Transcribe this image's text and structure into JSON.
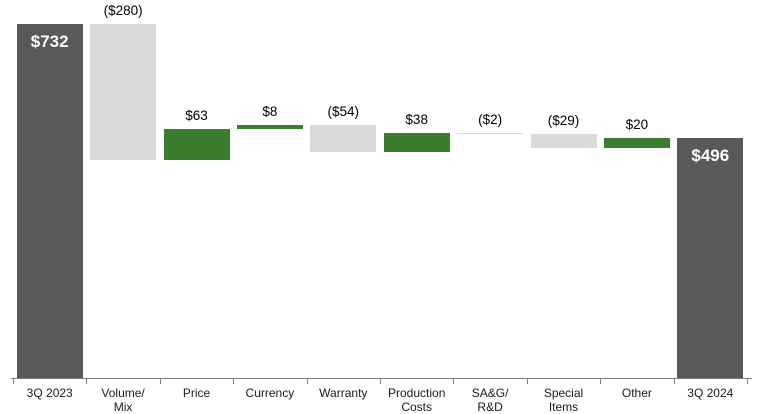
{
  "chart_data": {
    "type": "waterfall",
    "title": "",
    "xlabel": "",
    "ylabel": "",
    "ylim": [
      0,
      780
    ],
    "grid": false,
    "legend": "none",
    "start_value": 732,
    "end_value": 496,
    "categories": [
      "3Q 2023",
      "Volume/ Mix",
      "Price",
      "Currency",
      "Warranty",
      "Production Costs",
      "SA&G/ R&D",
      "Special Items",
      "Other",
      "3Q 2024"
    ],
    "bars": [
      {
        "category_lines": [
          "3Q 2023"
        ],
        "value": 732,
        "label": "$732",
        "kind": "total"
      },
      {
        "category_lines": [
          "Volume/",
          "Mix"
        ],
        "value": -280,
        "label": "($280)",
        "kind": "decrease"
      },
      {
        "category_lines": [
          "Price"
        ],
        "value": 63,
        "label": "$63",
        "kind": "increase"
      },
      {
        "category_lines": [
          "Currency"
        ],
        "value": 8,
        "label": "$8",
        "kind": "increase"
      },
      {
        "category_lines": [
          "Warranty"
        ],
        "value": -54,
        "label": "($54)",
        "kind": "decrease"
      },
      {
        "category_lines": [
          "Production",
          "Costs"
        ],
        "value": 38,
        "label": "$38",
        "kind": "increase"
      },
      {
        "category_lines": [
          "SA&G/",
          "R&D"
        ],
        "value": -2,
        "label": "($2)",
        "kind": "decrease"
      },
      {
        "category_lines": [
          "Special",
          "Items"
        ],
        "value": -29,
        "label": "($29)",
        "kind": "decrease"
      },
      {
        "category_lines": [
          "Other"
        ],
        "value": 20,
        "label": "$20",
        "kind": "increase"
      },
      {
        "category_lines": [
          "3Q 2024"
        ],
        "value": 496,
        "label": "$496",
        "kind": "total"
      }
    ],
    "colors": {
      "total": "#595959",
      "increase": "#3a7d2f",
      "decrease": "#d9d9d9",
      "in_bar_text": "#ffffff",
      "value_text": "#000000",
      "axis": "#7f7f7f"
    }
  }
}
